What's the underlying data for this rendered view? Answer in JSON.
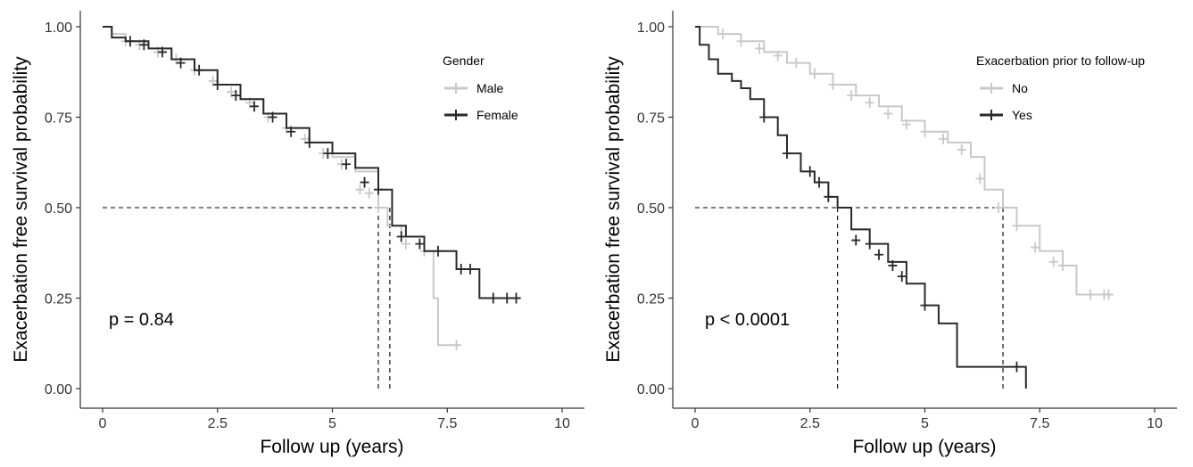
{
  "chart_data": [
    {
      "type": "line",
      "subtype": "kaplan-meier",
      "title": "",
      "xlabel": "Follow up (years)",
      "ylabel": "Exacerbation free survival probability",
      "xlim": [
        0,
        10
      ],
      "ylim": [
        0,
        1
      ],
      "x_ticks": [
        "0",
        "2.5",
        "5",
        "7.5",
        "10"
      ],
      "y_ticks": [
        "0.00",
        "0.25",
        "0.50",
        "0.75",
        "1.00"
      ],
      "grid": false,
      "legend": {
        "title": "Gender",
        "position": "right-top"
      },
      "annotation": "p = 0.84",
      "median_survival": {
        "y": 0.5,
        "x": [
          6.0,
          6.25
        ]
      },
      "series": [
        {
          "name": "Male",
          "color": "#c8c8c8",
          "x": [
            0,
            0.2,
            0.5,
            1.0,
            1.5,
            2.0,
            2.5,
            3.0,
            3.5,
            4.0,
            4.5,
            5.0,
            5.5,
            6.0,
            6.2,
            6.5,
            7.0,
            7.2,
            7.3,
            7.8
          ],
          "y": [
            1.0,
            0.98,
            0.96,
            0.94,
            0.91,
            0.88,
            0.84,
            0.8,
            0.76,
            0.72,
            0.68,
            0.64,
            0.6,
            0.5,
            0.45,
            0.42,
            0.38,
            0.25,
            0.12,
            0.12
          ],
          "censor_x": [
            0.5,
            0.8,
            1.2,
            1.6,
            2.0,
            2.4,
            2.8,
            3.2,
            3.6,
            4.0,
            4.4,
            4.8,
            5.2,
            5.6,
            5.8,
            6.0,
            6.6,
            7.0,
            7.7
          ],
          "censor_y": [
            0.96,
            0.95,
            0.93,
            0.91,
            0.88,
            0.85,
            0.82,
            0.79,
            0.75,
            0.72,
            0.69,
            0.65,
            0.62,
            0.55,
            0.54,
            0.5,
            0.4,
            0.38,
            0.12
          ]
        },
        {
          "name": "Female",
          "color": "#2a2a2a",
          "x": [
            0,
            0.2,
            0.5,
            1.0,
            1.5,
            2.0,
            2.5,
            3.0,
            3.5,
            4.0,
            4.5,
            5.0,
            5.5,
            6.0,
            6.3,
            6.6,
            7.0,
            7.7,
            8.2,
            9.1
          ],
          "y": [
            1.0,
            0.97,
            0.96,
            0.94,
            0.91,
            0.88,
            0.84,
            0.8,
            0.76,
            0.72,
            0.68,
            0.65,
            0.61,
            0.55,
            0.45,
            0.42,
            0.38,
            0.33,
            0.25,
            0.25
          ],
          "censor_x": [
            0.6,
            0.9,
            1.3,
            1.7,
            2.1,
            2.5,
            2.9,
            3.3,
            3.7,
            4.1,
            4.5,
            4.9,
            5.3,
            5.7,
            6.0,
            6.5,
            6.9,
            7.3,
            7.8,
            8.0,
            8.5,
            8.8,
            9.0
          ],
          "censor_y": [
            0.96,
            0.95,
            0.93,
            0.9,
            0.88,
            0.84,
            0.81,
            0.78,
            0.75,
            0.71,
            0.68,
            0.65,
            0.62,
            0.57,
            0.55,
            0.42,
            0.4,
            0.38,
            0.33,
            0.33,
            0.25,
            0.25,
            0.25
          ]
        }
      ]
    },
    {
      "type": "line",
      "subtype": "kaplan-meier",
      "title": "",
      "xlabel": "Follow up (years)",
      "ylabel": "Exacerbation free survival probability",
      "xlim": [
        0,
        10
      ],
      "ylim": [
        0,
        1
      ],
      "x_ticks": [
        "0",
        "2.5",
        "5",
        "7.5",
        "10"
      ],
      "y_ticks": [
        "0.00",
        "0.25",
        "0.50",
        "0.75",
        "1.00"
      ],
      "grid": false,
      "legend": {
        "title": "Exacerbation prior to follow-up",
        "position": "right-top"
      },
      "annotation": "p < 0.0001",
      "median_survival": {
        "y": 0.5,
        "x": [
          3.1,
          6.7
        ]
      },
      "series": [
        {
          "name": "No",
          "color": "#c8c8c8",
          "x": [
            0,
            0.5,
            1.0,
            1.5,
            2.0,
            2.5,
            3.0,
            3.5,
            4.0,
            4.5,
            5.0,
            5.5,
            6.0,
            6.3,
            6.7,
            7.0,
            7.5,
            8.0,
            8.3,
            9.1
          ],
          "y": [
            1.0,
            0.98,
            0.96,
            0.93,
            0.9,
            0.87,
            0.84,
            0.81,
            0.78,
            0.74,
            0.71,
            0.68,
            0.64,
            0.55,
            0.5,
            0.45,
            0.38,
            0.34,
            0.26,
            0.26
          ],
          "censor_x": [
            0.6,
            1.0,
            1.4,
            1.8,
            2.2,
            2.6,
            3.0,
            3.4,
            3.8,
            4.2,
            4.6,
            5.0,
            5.4,
            5.8,
            6.2,
            6.6,
            7.0,
            7.4,
            7.8,
            8.0,
            8.6,
            8.9,
            9.0
          ],
          "censor_y": [
            0.98,
            0.96,
            0.94,
            0.92,
            0.9,
            0.87,
            0.84,
            0.81,
            0.79,
            0.76,
            0.73,
            0.71,
            0.69,
            0.66,
            0.58,
            0.5,
            0.45,
            0.39,
            0.35,
            0.34,
            0.26,
            0.26,
            0.26
          ]
        },
        {
          "name": "Yes",
          "color": "#2a2a2a",
          "x": [
            0,
            0.1,
            0.3,
            0.5,
            0.8,
            1.0,
            1.2,
            1.5,
            1.8,
            2.0,
            2.3,
            2.6,
            2.9,
            3.1,
            3.4,
            3.8,
            4.2,
            4.6,
            5.0,
            5.3,
            5.7,
            7.2
          ],
          "y": [
            1.0,
            0.95,
            0.91,
            0.87,
            0.85,
            0.83,
            0.8,
            0.75,
            0.7,
            0.65,
            0.6,
            0.57,
            0.53,
            0.5,
            0.44,
            0.4,
            0.35,
            0.29,
            0.23,
            0.18,
            0.06,
            0.0
          ],
          "censor_x": [
            1.5,
            2.0,
            2.5,
            2.7,
            2.9,
            3.5,
            3.8,
            4.0,
            4.3,
            4.5,
            5.0,
            7.0
          ],
          "censor_y": [
            0.75,
            0.65,
            0.6,
            0.57,
            0.53,
            0.41,
            0.4,
            0.37,
            0.34,
            0.31,
            0.23,
            0.06
          ]
        }
      ]
    }
  ]
}
